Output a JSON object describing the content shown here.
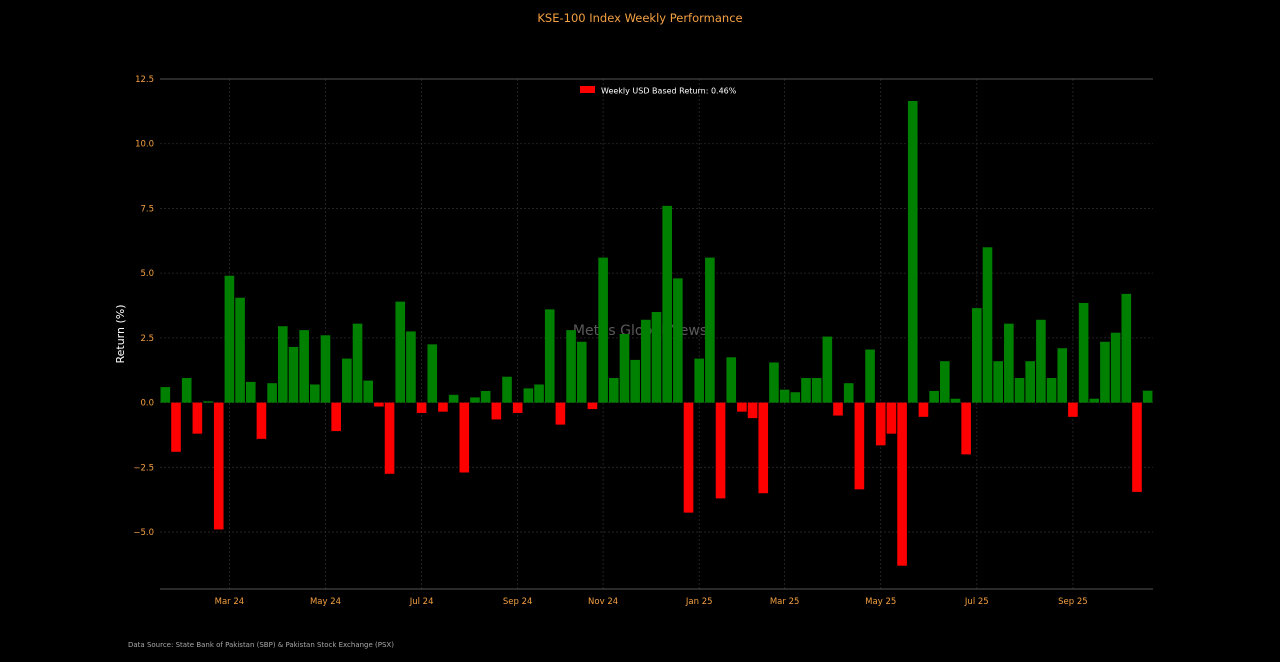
{
  "footer": {
    "source": "Data Source: State Bank of Pakistan (SBP) & Pakistan Stock Exchange (PSX)"
  },
  "chart_data": {
    "type": "bar",
    "title": "KSE-100 Index Weekly Performance",
    "ylabel": "Return (%)",
    "xlabel": "",
    "ylim": [
      -7.2,
      12.5
    ],
    "yticks": [
      -5.0,
      -2.5,
      0.0,
      2.5,
      5.0,
      7.5,
      10.0,
      12.5
    ],
    "ytick_labels": [
      "−5.0",
      "−2.5",
      "0.0",
      "2.5",
      "5.0",
      "7.5",
      "10.0",
      "12.5"
    ],
    "x_tick_labels": [
      "Mar 24",
      "May 24",
      "Jul 24",
      "Sep 24",
      "Nov 24",
      "Jan 25",
      "Mar 25",
      "May 25",
      "Jul 25",
      "Sep 25"
    ],
    "x_tick_index": [
      6,
      15,
      24,
      33,
      41,
      50,
      58,
      67,
      76,
      85
    ],
    "legend": {
      "label": "Weekly USD Based Return: 0.46%",
      "color": "#ff0000",
      "position": "top-center"
    },
    "watermark": "Mettis Global News",
    "grid": true,
    "colors": {
      "positive": "#008000",
      "negative": "#ff0000",
      "title": "#f5a041",
      "tick": "#f5a041",
      "text": "#ffffff"
    },
    "values": [
      0.6,
      -1.9,
      0.95,
      -1.2,
      0.05,
      -4.9,
      4.9,
      4.05,
      0.8,
      -1.4,
      0.75,
      2.95,
      2.15,
      2.8,
      0.7,
      2.6,
      -1.1,
      1.7,
      3.05,
      0.85,
      -0.15,
      -2.75,
      3.9,
      2.75,
      -0.4,
      2.25,
      -0.35,
      0.3,
      -2.7,
      0.2,
      0.45,
      -0.65,
      1.0,
      -0.4,
      0.55,
      0.7,
      3.6,
      -0.85,
      2.8,
      2.35,
      -0.25,
      5.6,
      0.95,
      2.65,
      1.65,
      3.2,
      3.5,
      7.6,
      4.8,
      -4.25,
      1.7,
      5.6,
      -3.7,
      1.75,
      -0.35,
      -0.6,
      -3.5,
      1.55,
      0.5,
      0.4,
      0.95,
      0.95,
      2.55,
      -0.5,
      0.75,
      -3.35,
      2.05,
      -1.65,
      -1.2,
      -6.3,
      11.65,
      -0.55,
      0.45,
      1.6,
      0.15,
      -2.0,
      3.65,
      6.0,
      1.6,
      3.05,
      0.95,
      1.6,
      3.2,
      0.95,
      2.1,
      -0.55,
      3.85,
      0.15,
      2.35,
      2.7,
      4.2,
      -3.45,
      0.46
    ]
  }
}
